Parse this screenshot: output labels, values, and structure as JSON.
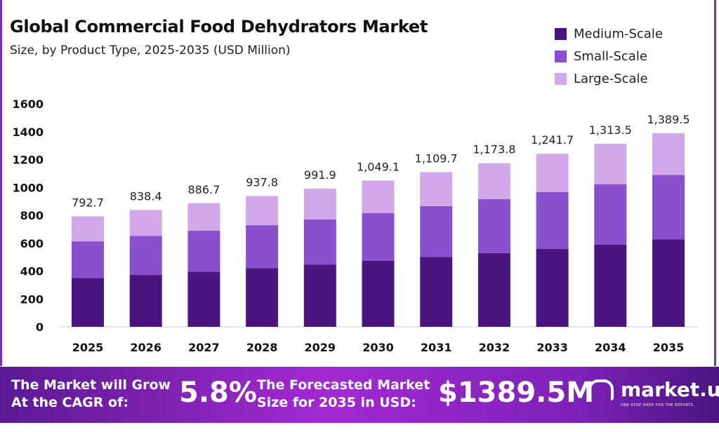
{
  "chart_data": {
    "type": "bar",
    "stacked": true,
    "title": "Global Commercial Food Dehydrators Market",
    "subtitle": "Size, by Product Type, 2025-2035 (USD Million)",
    "xlabel": "",
    "ylabel": "",
    "ylim": [
      0,
      1600
    ],
    "yticks": [
      0,
      200,
      400,
      600,
      800,
      1000,
      1200,
      1400,
      1600
    ],
    "grid": false,
    "legend_position": "top-right",
    "categories": [
      "2025",
      "2026",
      "2027",
      "2028",
      "2029",
      "2030",
      "2031",
      "2032",
      "2033",
      "2034",
      "2035"
    ],
    "series": [
      {
        "name": "Medium-Scale",
        "color": "#4b1580",
        "values": [
          350,
          372,
          396,
          421,
          447,
          473,
          502,
          529,
          559,
          590,
          628
        ]
      },
      {
        "name": "Small-Scale",
        "color": "#8a4fcc",
        "values": [
          263,
          281,
          293,
          308,
          323,
          342,
          364,
          387,
          408,
          433,
          461
        ]
      },
      {
        "name": "Large-Scale",
        "color": "#d2a8ea",
        "values": [
          179.7,
          185.4,
          197.7,
          208.8,
          221.9,
          234.1,
          243.7,
          257.8,
          274.7,
          290.5,
          300.5
        ]
      }
    ],
    "totals": [
      792.7,
      838.4,
      886.7,
      937.8,
      991.9,
      1049.1,
      1109.7,
      1173.8,
      1241.7,
      1313.5,
      1389.5
    ],
    "total_labels": [
      "792.7",
      "838.4",
      "886.7",
      "937.8",
      "991.9",
      "1,049.1",
      "1,109.7",
      "1,173.8",
      "1,241.7",
      "1,313.5",
      "1,389.5"
    ]
  },
  "banner": {
    "cagr_text_1": "The Market will Grow",
    "cagr_text_2": "At the CAGR of:",
    "cagr_value": "5.8%",
    "forecast_text_1": "The Forecasted Market",
    "forecast_text_2": "Size for 2035 in USD:",
    "forecast_value": "$1389.5M",
    "brand": "market.us",
    "tagline": "ONE STOP SHOP FOR THE REPORTS"
  }
}
